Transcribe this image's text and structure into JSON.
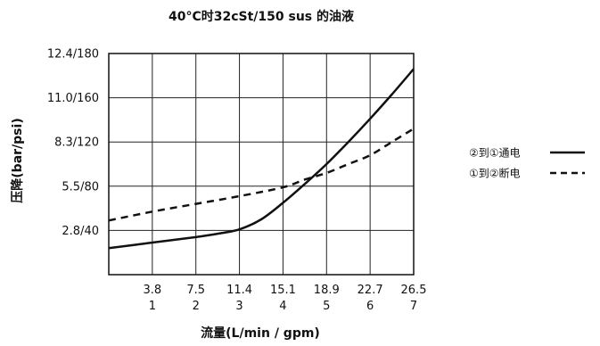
{
  "chart_data": {
    "type": "line",
    "title": "40°C时32cSt/150 sus 的油液",
    "xlabel": "流量(L/min / gpm)",
    "ylabel": "压降(bar/psi)",
    "x_ticks": [
      {
        "top": "3.8",
        "bottom": "1"
      },
      {
        "top": "7.5",
        "bottom": "2"
      },
      {
        "top": "11.4",
        "bottom": "3"
      },
      {
        "top": "15.1",
        "bottom": "4"
      },
      {
        "top": "18.9",
        "bottom": "5"
      },
      {
        "top": "22.7",
        "bottom": "6"
      },
      {
        "top": "26.5",
        "bottom": "7"
      }
    ],
    "y_ticks": [
      {
        "value": 2,
        "label": "2.8/40"
      },
      {
        "value": 4,
        "label": "5.5/80"
      },
      {
        "value": 6,
        "label": "8.3/120"
      },
      {
        "value": 8,
        "label": "11.0/160"
      },
      {
        "value": 10,
        "label": "12.4/180"
      }
    ],
    "xlim": [
      0,
      7
    ],
    "ylim": [
      0,
      10
    ],
    "grid": true,
    "legend_position": "right",
    "series": [
      {
        "name": "②到①通电",
        "style": "solid",
        "x": [
          0,
          1,
          2,
          2.5,
          3,
          3.5,
          4,
          4.5,
          5,
          5.5,
          6,
          6.5,
          7
        ],
        "y": [
          1.2,
          1.45,
          1.7,
          1.85,
          2.05,
          2.5,
          3.25,
          4.1,
          5.0,
          6.0,
          7.05,
          8.15,
          9.3
        ]
      },
      {
        "name": "①到②断电",
        "style": "dashed",
        "x": [
          0,
          1,
          2,
          3,
          4,
          4.5,
          5,
          5.5,
          6,
          6.5,
          7
        ],
        "y": [
          2.45,
          2.85,
          3.2,
          3.55,
          3.95,
          4.3,
          4.6,
          5.0,
          5.4,
          6.0,
          6.6
        ]
      }
    ]
  }
}
